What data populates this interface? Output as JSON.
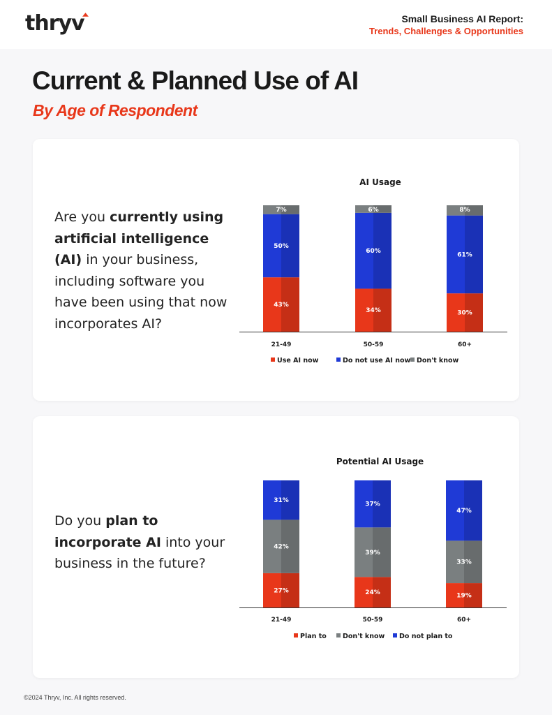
{
  "header": {
    "logo_text": "thryv",
    "report_title": "Small Business AI Report:",
    "report_subtitle": "Trends, Challenges & Opportunities"
  },
  "page": {
    "title": "Current & Planned Use of AI",
    "subtitle": "By Age of Respondent"
  },
  "colors": {
    "accent": "#e8371a",
    "use": "#e8371a",
    "not_use": "#1f3ad6",
    "dont_know": "#7a7f80"
  },
  "card1": {
    "question_html_parts": {
      "p1": "Are you ",
      "b1": "currently using artificial intelligence (AI)",
      "p2": " in your business, including software you have been using that now incorporates AI?"
    }
  },
  "card2": {
    "question_html_parts": {
      "p1": "Do you ",
      "b1": "plan to incorporate AI",
      "p2": " into your business in the future?"
    }
  },
  "chart_data": [
    {
      "type": "bar",
      "stacked": true,
      "title": "AI Usage",
      "categories": [
        "21-49",
        "50-59",
        "60+"
      ],
      "series": [
        {
          "name": "Use AI now",
          "color": "#e8371a",
          "values": [
            43,
            34,
            30
          ],
          "labels": [
            "43%",
            "34%",
            "30%"
          ]
        },
        {
          "name": "Do not use AI now",
          "color": "#1f3ad6",
          "values": [
            50,
            60,
            61
          ],
          "labels": [
            "50%",
            "60%",
            "61%"
          ]
        },
        {
          "name": "Don't know",
          "color": "#7a7f80",
          "values": [
            7,
            6,
            8
          ],
          "labels": [
            "7%",
            "6%",
            "8%"
          ]
        }
      ],
      "legend": [
        "Use AI now",
        "Do not use AI now",
        "Don't know"
      ],
      "legend_position": "bottom",
      "grid": false
    },
    {
      "type": "bar",
      "stacked": true,
      "title": "Potential AI Usage",
      "categories": [
        "21-49",
        "50-59",
        "60+"
      ],
      "series": [
        {
          "name": "Plan to",
          "color": "#e8371a",
          "values": [
            27,
            24,
            19
          ],
          "labels": [
            "27%",
            "24%",
            "19%"
          ]
        },
        {
          "name": "Don't know",
          "color": "#7a7f80",
          "values": [
            42,
            39,
            33
          ],
          "labels": [
            "42%",
            "39%",
            "33%"
          ]
        },
        {
          "name": "Do not plan to",
          "color": "#1f3ad6",
          "values": [
            31,
            37,
            47
          ],
          "labels": [
            "31%",
            "37%",
            "47%"
          ]
        }
      ],
      "legend": [
        "Plan to",
        "Don't know",
        "Do not plan to"
      ],
      "legend_position": "bottom",
      "grid": false
    }
  ],
  "footer": {
    "copyright": "©2024 Thryv, Inc. All rights reserved."
  }
}
